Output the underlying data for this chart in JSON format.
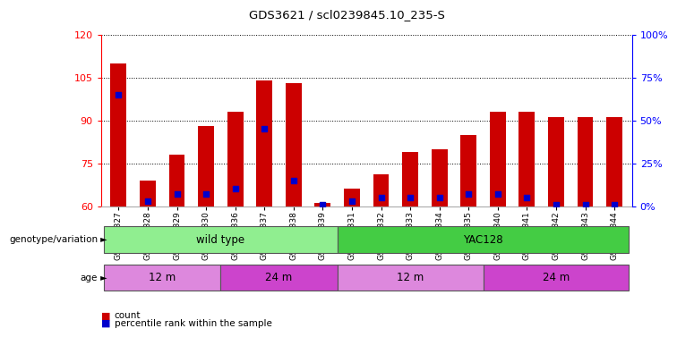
{
  "title": "GDS3621 / scl0239845.10_235-S",
  "samples": [
    "GSM491327",
    "GSM491328",
    "GSM491329",
    "GSM491330",
    "GSM491336",
    "GSM491337",
    "GSM491338",
    "GSM491339",
    "GSM491331",
    "GSM491332",
    "GSM491333",
    "GSM491334",
    "GSM491335",
    "GSM491340",
    "GSM491341",
    "GSM491342",
    "GSM491343",
    "GSM491344"
  ],
  "counts": [
    110,
    69,
    78,
    88,
    93,
    104,
    103,
    61,
    66,
    71,
    79,
    80,
    85,
    93,
    93,
    91,
    91,
    91
  ],
  "percentile_ranks": [
    65,
    3,
    7,
    7,
    10,
    45,
    15,
    1,
    3,
    5,
    5,
    5,
    7,
    7,
    5,
    1,
    1,
    1
  ],
  "ylim_left": [
    60,
    120
  ],
  "ylim_right": [
    0,
    100
  ],
  "yticks_left": [
    60,
    75,
    90,
    105,
    120
  ],
  "yticks_right": [
    0,
    25,
    50,
    75,
    100
  ],
  "bar_color": "#cc0000",
  "marker_color": "#0000cc",
  "background_color": "#ffffff",
  "genotype_groups": [
    {
      "label": "wild type",
      "start": 0,
      "end": 8,
      "color": "#90ee90"
    },
    {
      "label": "YAC128",
      "start": 8,
      "end": 18,
      "color": "#44cc44"
    }
  ],
  "age_groups": [
    {
      "label": "12 m",
      "start": 0,
      "end": 4,
      "color": "#dd88dd"
    },
    {
      "label": "24 m",
      "start": 4,
      "end": 8,
      "color": "#cc44cc"
    },
    {
      "label": "12 m",
      "start": 8,
      "end": 13,
      "color": "#dd88dd"
    },
    {
      "label": "24 m",
      "start": 13,
      "end": 18,
      "color": "#cc44cc"
    }
  ],
  "legend_count_color": "#cc0000",
  "legend_marker_color": "#0000cc"
}
